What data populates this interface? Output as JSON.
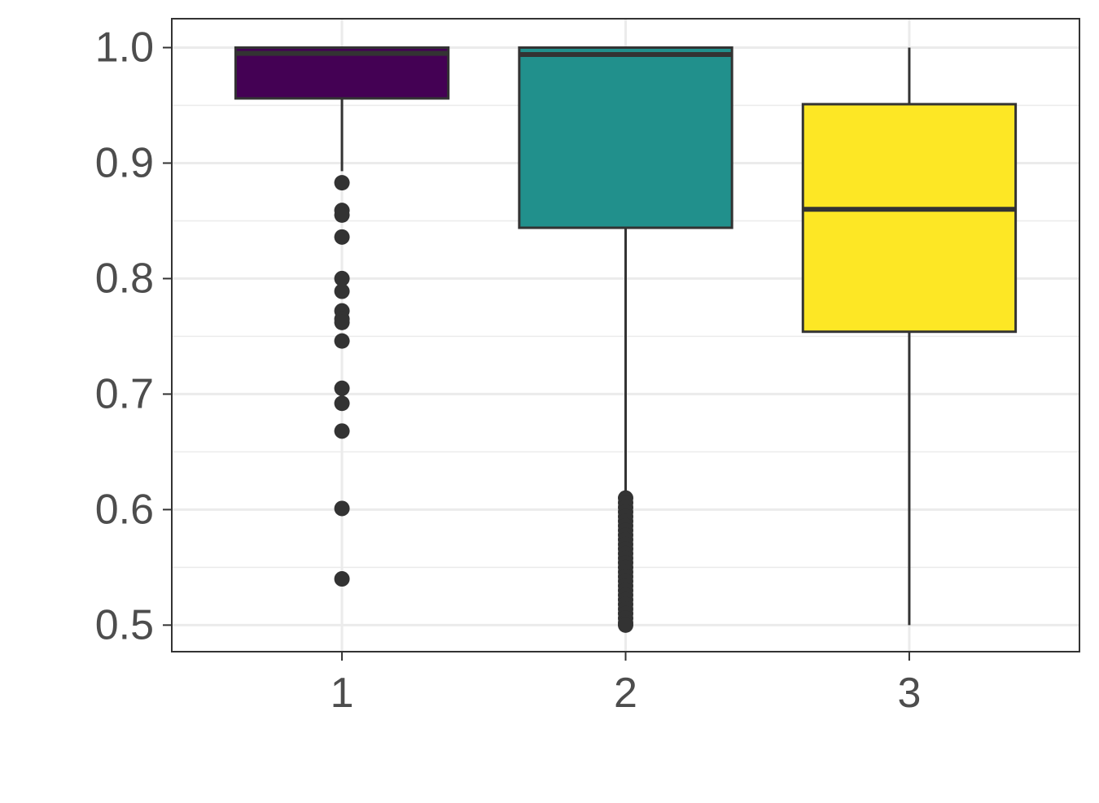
{
  "chart_data": {
    "type": "boxplot",
    "title": "",
    "xlabel": "",
    "ylabel": "",
    "categories": [
      "1",
      "2",
      "3"
    ],
    "ylim": [
      0.477,
      1.025
    ],
    "y_ticks": [
      "0.5",
      "0.6",
      "0.7",
      "0.8",
      "0.9",
      "1.0"
    ],
    "y_tick_values": [
      0.5,
      0.6,
      0.7,
      0.8,
      0.9,
      1.0
    ],
    "y_minor_ticks": [
      0.55,
      0.65,
      0.75,
      0.85,
      0.95
    ],
    "grid": true,
    "legend": "none",
    "boxes": [
      {
        "category": "1",
        "fill": "#440154",
        "whisker_low": 0.893,
        "q1": 0.956,
        "median": 0.995,
        "q3": 1.0,
        "whisker_high": 1.0,
        "outliers": [
          0.883,
          0.859,
          0.855,
          0.836,
          0.8,
          0.789,
          0.772,
          0.765,
          0.762,
          0.746,
          0.705,
          0.692,
          0.668,
          0.601,
          0.54
        ]
      },
      {
        "category": "2",
        "fill": "#21908C",
        "whisker_low": 0.611,
        "q1": 0.844,
        "median": 0.994,
        "q3": 1.0,
        "whisker_high": 1.0,
        "outliers": [
          0.61,
          0.606,
          0.602,
          0.598,
          0.594,
          0.59,
          0.586,
          0.582,
          0.578,
          0.574,
          0.57,
          0.566,
          0.562,
          0.558,
          0.554,
          0.55,
          0.546,
          0.542,
          0.538,
          0.534,
          0.53,
          0.526,
          0.522,
          0.518,
          0.514,
          0.51,
          0.506,
          0.502,
          0.5
        ]
      },
      {
        "category": "3",
        "fill": "#FDE725",
        "whisker_low": 0.5,
        "q1": 0.754,
        "median": 0.86,
        "q3": 0.951,
        "whisker_high": 1.0,
        "outliers": []
      }
    ]
  }
}
